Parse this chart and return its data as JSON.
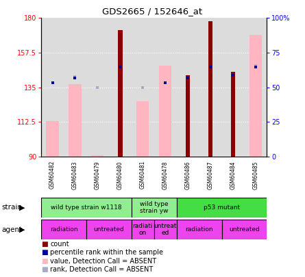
{
  "title": "GDS2665 / 152646_at",
  "samples": [
    "GSM60482",
    "GSM60483",
    "GSM60479",
    "GSM60480",
    "GSM60481",
    "GSM60478",
    "GSM60486",
    "GSM60487",
    "GSM60484",
    "GSM60485"
  ],
  "red_bars": [
    null,
    null,
    null,
    172,
    null,
    null,
    143,
    178,
    145,
    null
  ],
  "pink_bars": [
    113,
    137,
    91,
    null,
    126,
    149,
    null,
    null,
    null,
    169
  ],
  "blue_squares": [
    138,
    141,
    null,
    148,
    null,
    138,
    141,
    148,
    143,
    148
  ],
  "light_blue_squares": [
    138,
    142,
    135,
    null,
    135,
    138,
    null,
    null,
    null,
    149
  ],
  "ylim_left": [
    90,
    180
  ],
  "ylim_right": [
    0,
    100
  ],
  "yticks_left": [
    90,
    112.5,
    135,
    157.5,
    180
  ],
  "yticks_right": [
    0,
    25,
    50,
    75,
    100
  ],
  "strain_groups": [
    {
      "label": "wild type strain w1118",
      "start": 0,
      "end": 3,
      "color": "#90EE90"
    },
    {
      "label": "wild type\nstrain yw",
      "start": 4,
      "end": 5,
      "color": "#90EE90"
    },
    {
      "label": "p53 mutant",
      "start": 6,
      "end": 9,
      "color": "#44DD44"
    }
  ],
  "agent_groups": [
    {
      "label": "radiation",
      "start": 0,
      "end": 1,
      "color": "#EE44EE"
    },
    {
      "label": "untreated",
      "start": 2,
      "end": 3,
      "color": "#EE44EE"
    },
    {
      "label": "radiati\non",
      "start": 4,
      "end": 4,
      "color": "#EE44EE"
    },
    {
      "label": "untreat\ned",
      "start": 5,
      "end": 5,
      "color": "#EE44EE"
    },
    {
      "label": "radiation",
      "start": 6,
      "end": 7,
      "color": "#EE44EE"
    },
    {
      "label": "untreated",
      "start": 8,
      "end": 9,
      "color": "#EE44EE"
    }
  ],
  "color_red": "#8B0000",
  "color_pink": "#FFB6C1",
  "color_blue": "#000099",
  "color_lightblue": "#AAAACC",
  "color_plotbg": "#DCDCDC",
  "color_bg": "#FFFFFF",
  "color_gridline": "#FFFFFF"
}
